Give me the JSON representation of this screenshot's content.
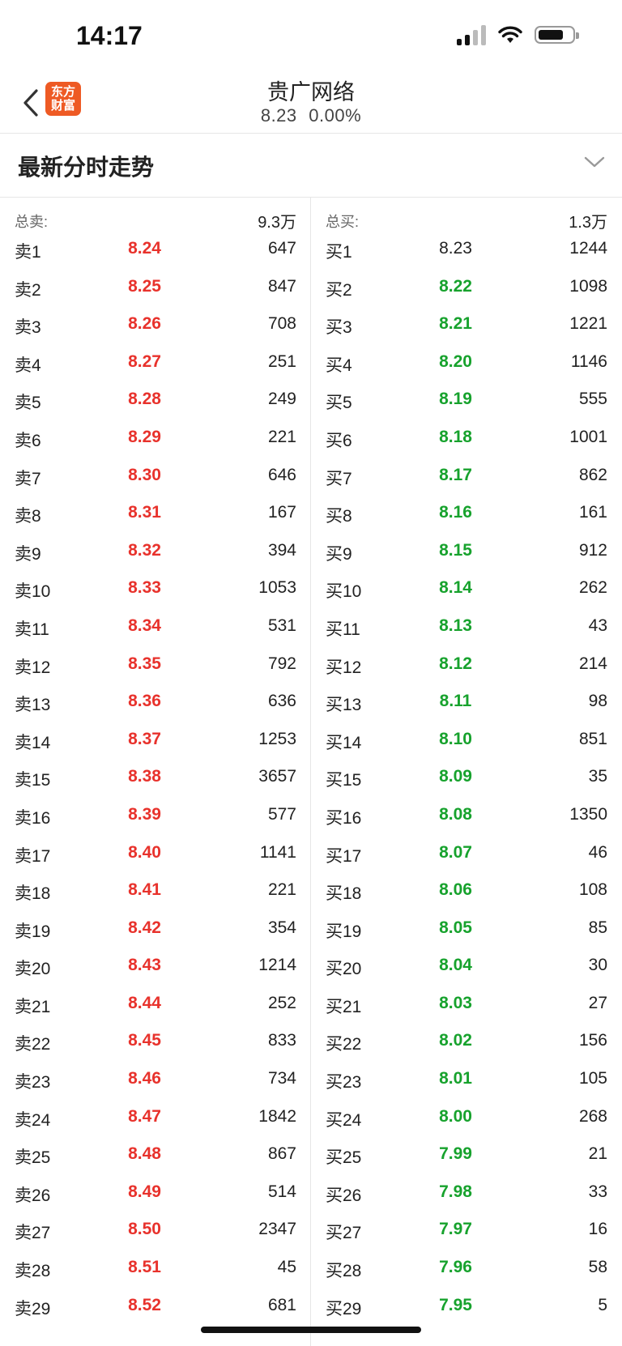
{
  "status": {
    "time": "14:17"
  },
  "header": {
    "logo_line1": "东方",
    "logo_line2": "财富",
    "title": "贵广网络",
    "price": "8.23",
    "change": "0.00%"
  },
  "section": {
    "title": "最新分时走势"
  },
  "sell": {
    "total_label": "总卖:",
    "total_value": "9.3万",
    "levels": [
      {
        "label": "卖1",
        "price": "8.24",
        "volume": "647"
      },
      {
        "label": "卖2",
        "price": "8.25",
        "volume": "847"
      },
      {
        "label": "卖3",
        "price": "8.26",
        "volume": "708"
      },
      {
        "label": "卖4",
        "price": "8.27",
        "volume": "251"
      },
      {
        "label": "卖5",
        "price": "8.28",
        "volume": "249"
      },
      {
        "label": "卖6",
        "price": "8.29",
        "volume": "221"
      },
      {
        "label": "卖7",
        "price": "8.30",
        "volume": "646"
      },
      {
        "label": "卖8",
        "price": "8.31",
        "volume": "167"
      },
      {
        "label": "卖9",
        "price": "8.32",
        "volume": "394"
      },
      {
        "label": "卖10",
        "price": "8.33",
        "volume": "1053"
      },
      {
        "label": "卖11",
        "price": "8.34",
        "volume": "531"
      },
      {
        "label": "卖12",
        "price": "8.35",
        "volume": "792"
      },
      {
        "label": "卖13",
        "price": "8.36",
        "volume": "636"
      },
      {
        "label": "卖14",
        "price": "8.37",
        "volume": "1253"
      },
      {
        "label": "卖15",
        "price": "8.38",
        "volume": "3657"
      },
      {
        "label": "卖16",
        "price": "8.39",
        "volume": "577"
      },
      {
        "label": "卖17",
        "price": "8.40",
        "volume": "1141"
      },
      {
        "label": "卖18",
        "price": "8.41",
        "volume": "221"
      },
      {
        "label": "卖19",
        "price": "8.42",
        "volume": "354"
      },
      {
        "label": "卖20",
        "price": "8.43",
        "volume": "1214"
      },
      {
        "label": "卖21",
        "price": "8.44",
        "volume": "252"
      },
      {
        "label": "卖22",
        "price": "8.45",
        "volume": "833"
      },
      {
        "label": "卖23",
        "price": "8.46",
        "volume": "734"
      },
      {
        "label": "卖24",
        "price": "8.47",
        "volume": "1842"
      },
      {
        "label": "卖25",
        "price": "8.48",
        "volume": "867"
      },
      {
        "label": "卖26",
        "price": "8.49",
        "volume": "514"
      },
      {
        "label": "卖27",
        "price": "8.50",
        "volume": "2347"
      },
      {
        "label": "卖28",
        "price": "8.51",
        "volume": "45"
      },
      {
        "label": "卖29",
        "price": "8.52",
        "volume": "681"
      }
    ]
  },
  "buy": {
    "total_label": "总买:",
    "total_value": "1.3万",
    "levels": [
      {
        "label": "买1",
        "price": "8.23",
        "volume": "1244"
      },
      {
        "label": "买2",
        "price": "8.22",
        "volume": "1098"
      },
      {
        "label": "买3",
        "price": "8.21",
        "volume": "1221"
      },
      {
        "label": "买4",
        "price": "8.20",
        "volume": "1146"
      },
      {
        "label": "买5",
        "price": "8.19",
        "volume": "555"
      },
      {
        "label": "买6",
        "price": "8.18",
        "volume": "1001"
      },
      {
        "label": "买7",
        "price": "8.17",
        "volume": "862"
      },
      {
        "label": "买8",
        "price": "8.16",
        "volume": "161"
      },
      {
        "label": "买9",
        "price": "8.15",
        "volume": "912"
      },
      {
        "label": "买10",
        "price": "8.14",
        "volume": "262"
      },
      {
        "label": "买11",
        "price": "8.13",
        "volume": "43"
      },
      {
        "label": "买12",
        "price": "8.12",
        "volume": "214"
      },
      {
        "label": "买13",
        "price": "8.11",
        "volume": "98"
      },
      {
        "label": "买14",
        "price": "8.10",
        "volume": "851"
      },
      {
        "label": "买15",
        "price": "8.09",
        "volume": "35"
      },
      {
        "label": "买16",
        "price": "8.08",
        "volume": "1350"
      },
      {
        "label": "买17",
        "price": "8.07",
        "volume": "46"
      },
      {
        "label": "买18",
        "price": "8.06",
        "volume": "108"
      },
      {
        "label": "买19",
        "price": "8.05",
        "volume": "85"
      },
      {
        "label": "买20",
        "price": "8.04",
        "volume": "30"
      },
      {
        "label": "买21",
        "price": "8.03",
        "volume": "27"
      },
      {
        "label": "买22",
        "price": "8.02",
        "volume": "156"
      },
      {
        "label": "买23",
        "price": "8.01",
        "volume": "105"
      },
      {
        "label": "买24",
        "price": "8.00",
        "volume": "268"
      },
      {
        "label": "买25",
        "price": "7.99",
        "volume": "21"
      },
      {
        "label": "买26",
        "price": "7.98",
        "volume": "33"
      },
      {
        "label": "买27",
        "price": "7.97",
        "volume": "16"
      },
      {
        "label": "买28",
        "price": "7.96",
        "volume": "58"
      },
      {
        "label": "买29",
        "price": "7.95",
        "volume": "5"
      }
    ]
  },
  "colors": {
    "up": "#e8322c",
    "down": "#17a22d",
    "flat": "#222222",
    "brand": "#ee5a24"
  },
  "icons": [
    "back-chevron-icon",
    "logo-icon",
    "chevron-down-icon",
    "signal-icon",
    "wifi-icon",
    "battery-icon"
  ]
}
